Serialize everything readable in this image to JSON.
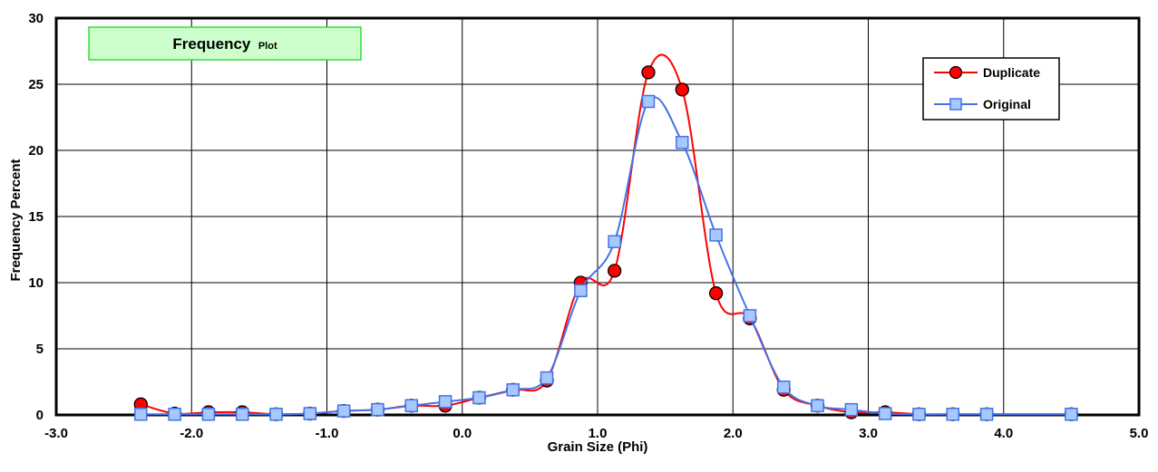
{
  "chart_data": {
    "type": "line",
    "title": "Frequency",
    "title_suffix": "Plot",
    "xlabel": "Grain Size (Phi)",
    "ylabel": "Frequency Percent",
    "xlim": [
      -3.0,
      5.0
    ],
    "ylim": [
      0,
      30
    ],
    "x_ticks": [
      "-3.0",
      "-2.0",
      "-1.0",
      "0.0",
      "1.0",
      "2.0",
      "3.0",
      "4.0",
      "5.0"
    ],
    "y_ticks": [
      "0",
      "5",
      "10",
      "15",
      "20",
      "25",
      "30"
    ],
    "grid": true,
    "legend_position": "top-right",
    "series": [
      {
        "name": "Duplicate",
        "color": "#ff0000",
        "marker": "circle",
        "marker_color": "#ff0000",
        "x": [
          -2.375,
          -2.125,
          -1.875,
          -1.625,
          -1.375,
          -1.125,
          -0.875,
          -0.625,
          -0.375,
          -0.125,
          0.125,
          0.375,
          0.625,
          0.875,
          1.125,
          1.375,
          1.625,
          1.875,
          2.125,
          2.375,
          2.625,
          2.875,
          3.125,
          3.375,
          3.625,
          3.875,
          4.5
        ],
        "y": [
          0.8,
          0.1,
          0.2,
          0.2,
          0.05,
          0.1,
          0.3,
          0.4,
          0.7,
          0.7,
          1.3,
          1.9,
          2.6,
          10.0,
          10.9,
          25.9,
          24.6,
          9.2,
          7.3,
          1.9,
          0.7,
          0.2,
          0.2,
          0.05,
          0.05,
          0.05,
          0.05
        ]
      },
      {
        "name": "Original",
        "color": "#4472e8",
        "marker": "square",
        "marker_color": "#a6c8ff",
        "x": [
          -2.375,
          -2.125,
          -1.875,
          -1.625,
          -1.375,
          -1.125,
          -0.875,
          -0.625,
          -0.375,
          -0.125,
          0.125,
          0.375,
          0.625,
          0.875,
          1.125,
          1.375,
          1.625,
          1.875,
          2.125,
          2.375,
          2.625,
          2.875,
          3.125,
          3.375,
          3.625,
          3.875,
          4.5
        ],
        "y": [
          0.05,
          0.05,
          0.05,
          0.05,
          0.05,
          0.1,
          0.3,
          0.4,
          0.7,
          1.0,
          1.3,
          1.9,
          2.8,
          9.4,
          13.1,
          23.7,
          20.6,
          13.6,
          7.5,
          2.1,
          0.7,
          0.4,
          0.1,
          0.05,
          0.05,
          0.05,
          0.05
        ]
      }
    ]
  }
}
